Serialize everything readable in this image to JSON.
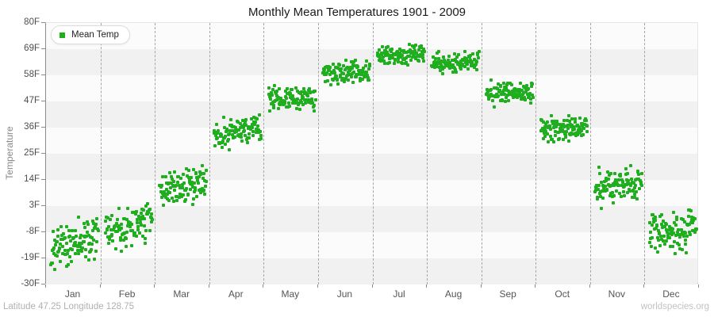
{
  "title": "Monthly Mean Temperatures 1901 - 2009",
  "legend": {
    "label": "Mean Temp"
  },
  "y_axis": {
    "label": "Temperature",
    "ticks": [
      "80F",
      "69F",
      "58F",
      "47F",
      "36F",
      "25F",
      "14F",
      "3F",
      "-8F",
      "-19F",
      "-30F"
    ]
  },
  "x_axis": {
    "months": [
      "Jan",
      "Feb",
      "Mar",
      "Apr",
      "May",
      "Jun",
      "Jul",
      "Aug",
      "Sep",
      "Oct",
      "Nov",
      "Dec"
    ]
  },
  "footer": {
    "left": "Latitude 47.25 Longitude 128.75",
    "right": "worldspecies.org"
  },
  "colors": {
    "marker": "#1eae1e",
    "band_light": "#fbfbfb",
    "band_dark": "#f1f1f1",
    "grid": "#a6a6a6",
    "axis": "#8c8c8c"
  },
  "chart_data": {
    "type": "scatter",
    "title": "Monthly Mean Temperatures 1901 - 2009",
    "xlabel": "",
    "ylabel": "Temperature",
    "unit": "F",
    "ylim": [
      -30,
      80
    ],
    "y_tick_step": 11,
    "grid": "vertical-dashed, horizontal alternating bands",
    "legend_position": "top-left",
    "series_name": "Mean Temp",
    "years_range": [
      1901,
      2009
    ],
    "points_per_month": 109,
    "seed": 20090131,
    "categories": [
      "Jan",
      "Feb",
      "Mar",
      "Apr",
      "May",
      "Jun",
      "Jul",
      "Aug",
      "Sep",
      "Oct",
      "Nov",
      "Dec"
    ],
    "months": [
      {
        "name": "Jan",
        "mean": -12.5,
        "sd": 4.2,
        "min": -25,
        "max": 1,
        "trend": 8
      },
      {
        "name": "Feb",
        "mean": -5.5,
        "sd": 3.8,
        "min": -18,
        "max": 4,
        "trend": 7
      },
      {
        "name": "Mar",
        "mean": 11.5,
        "sd": 3.8,
        "min": 3,
        "max": 25,
        "trend": 4
      },
      {
        "name": "Apr",
        "mean": 35.0,
        "sd": 2.8,
        "min": 26,
        "max": 43,
        "trend": 4
      },
      {
        "name": "May",
        "mean": 48.5,
        "sd": 2.4,
        "min": 43,
        "max": 56,
        "trend": 2
      },
      {
        "name": "Jun",
        "mean": 59.5,
        "sd": 2.3,
        "min": 54,
        "max": 66,
        "trend": 1
      },
      {
        "name": "Jul",
        "mean": 66.5,
        "sd": 2.0,
        "min": 61,
        "max": 71,
        "trend": 1
      },
      {
        "name": "Aug",
        "mean": 63.5,
        "sd": 2.0,
        "min": 58,
        "max": 68,
        "trend": 1
      },
      {
        "name": "Sep",
        "mean": 50.5,
        "sd": 2.2,
        "min": 44,
        "max": 56,
        "trend": 1
      },
      {
        "name": "Oct",
        "mean": 35.5,
        "sd": 2.5,
        "min": 26,
        "max": 41,
        "trend": 1
      },
      {
        "name": "Nov",
        "mean": 11.5,
        "sd": 3.5,
        "min": 2,
        "max": 21,
        "trend": 2
      },
      {
        "name": "Dec",
        "mean": -7.5,
        "sd": 4.0,
        "min": -17,
        "max": 3,
        "trend": 2
      }
    ]
  }
}
